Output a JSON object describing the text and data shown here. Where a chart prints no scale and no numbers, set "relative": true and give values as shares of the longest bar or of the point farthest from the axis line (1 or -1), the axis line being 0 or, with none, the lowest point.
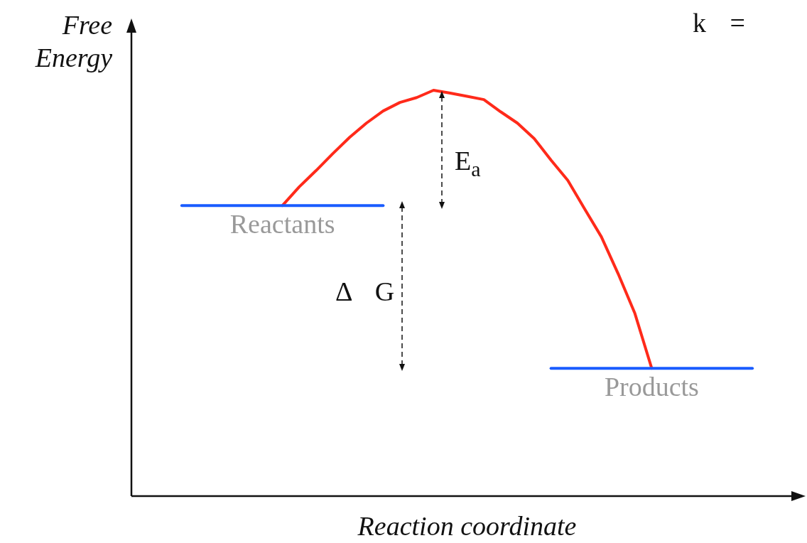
{
  "chart_data": {
    "type": "line",
    "relative": true,
    "xlabel": "Reaction coordinate",
    "ylabel": "Free Energy",
    "legend": false,
    "marker": "none",
    "line_style": "solid",
    "categories": [
      null,
      null,
      null,
      null,
      null,
      null,
      null,
      null,
      null,
      null,
      null,
      null,
      null,
      null,
      null,
      null,
      null,
      null,
      null,
      null,
      null,
      null,
      null,
      null,
      null,
      null,
      null,
      null,
      null,
      null,
      null,
      null,
      null,
      null,
      null,
      null,
      null,
      null,
      null,
      null,
      null
    ],
    "series": [
      {
        "name": "Reactants",
        "color": "#1a5cff",
        "values": [
          null,
          null,
          null,
          0.716,
          0.716,
          0.716,
          0.716,
          0.716,
          0.716,
          0.716,
          0.716,
          0.716,
          0.716,
          0.716,
          0.716,
          0.716,
          null,
          null,
          null,
          null,
          null,
          null,
          null,
          null,
          null,
          null,
          null,
          null,
          null,
          null,
          null,
          null,
          null,
          null,
          null,
          null,
          null,
          null,
          null,
          null,
          null
        ]
      },
      {
        "name": "Products",
        "color": "#1a5cff",
        "values": [
          null,
          null,
          null,
          null,
          null,
          null,
          null,
          null,
          null,
          null,
          null,
          null,
          null,
          null,
          null,
          null,
          null,
          null,
          null,
          null,
          null,
          null,
          null,
          null,
          null,
          0.315,
          0.315,
          0.315,
          0.315,
          0.315,
          0.315,
          0.315,
          0.315,
          0.315,
          0.315,
          0.315,
          0.315,
          0.315,
          null,
          null,
          null
        ]
      },
      {
        "color": "#ff2a1a",
        "values": [
          null,
          null,
          null,
          null,
          null,
          null,
          null,
          null,
          null,
          0.716,
          0.762,
          0.802,
          0.844,
          0.884,
          0.919,
          0.949,
          0.97,
          0.982,
          1,
          0.993,
          0.985,
          0.977,
          0.947,
          0.919,
          0.881,
          0.828,
          0.778,
          0.708,
          0.639,
          0.548,
          0.45,
          0.315,
          null,
          null,
          null,
          null,
          null,
          null,
          null,
          null,
          null
        ]
      }
    ],
    "annotations": [
      "E$_{a}$",
      "Δ G",
      "k ="
    ]
  }
}
